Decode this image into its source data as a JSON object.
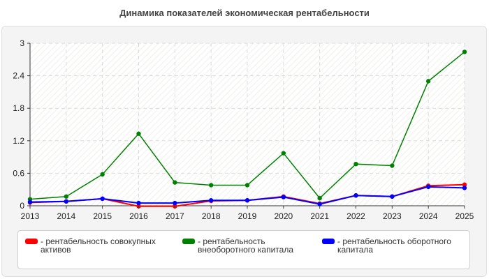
{
  "title": "Динамика показателей экономическая рентабельности",
  "chart_data": {
    "type": "line",
    "title": "Динамика показателей экономическая рентабельности",
    "categories": [
      "2013",
      "2014",
      "2015",
      "2016",
      "2017",
      "2018",
      "2019",
      "2020",
      "2021",
      "2022",
      "2023",
      "2024",
      "2025"
    ],
    "ylim": [
      0,
      3
    ],
    "yticks": [
      "0",
      "0.6",
      "1.2",
      "1.8",
      "2.4",
      "3"
    ],
    "grid": true,
    "legend_position": "bottom",
    "series": [
      {
        "name": "- рентабельность совокупных активов",
        "color": "#ff0000",
        "values": [
          0.06,
          0.08,
          0.13,
          -0.01,
          -0.01,
          0.09,
          0.1,
          0.17,
          0.04,
          0.19,
          0.17,
          0.37,
          0.39
        ]
      },
      {
        "name": "- рентабельность внеоборотного капитала",
        "color": "#008000",
        "values": [
          0.12,
          0.17,
          0.58,
          1.33,
          0.43,
          0.38,
          0.38,
          0.97,
          0.14,
          0.77,
          0.74,
          2.3,
          2.84
        ]
      },
      {
        "name": "- рентабельность оборотного капитала",
        "color": "#0000ff",
        "values": [
          0.07,
          0.08,
          0.13,
          0.05,
          0.05,
          0.1,
          0.1,
          0.16,
          0.03,
          0.19,
          0.17,
          0.35,
          0.33
        ]
      }
    ]
  }
}
